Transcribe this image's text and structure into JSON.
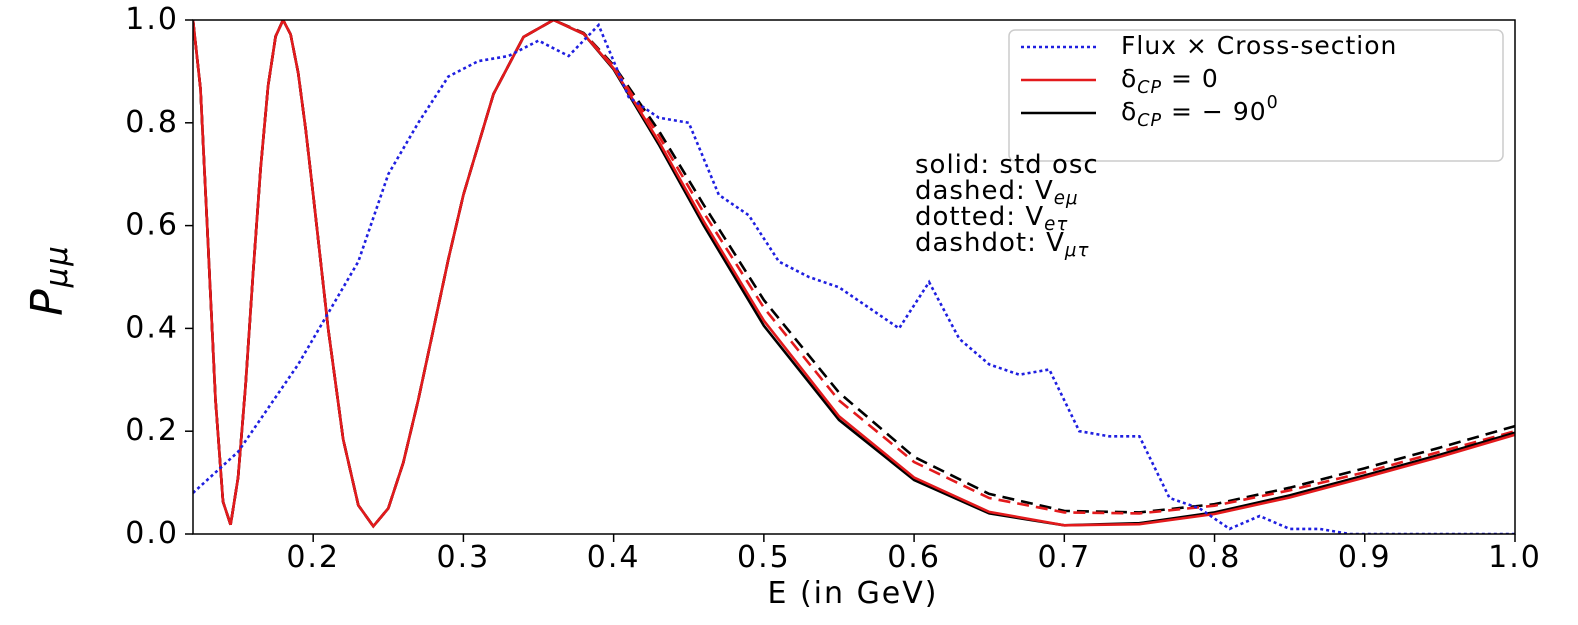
{
  "chart_data": {
    "type": "line",
    "xlabel": "E (in GeV)",
    "ylabel": "P_{μμ}",
    "x": [
      0.12,
      0.125,
      0.13,
      0.135,
      0.14,
      0.145,
      0.15,
      0.155,
      0.16,
      0.165,
      0.17,
      0.175,
      0.18,
      0.185,
      0.19,
      0.195,
      0.2,
      0.21,
      0.22,
      0.23,
      0.24,
      0.25,
      0.26,
      0.27,
      0.28,
      0.29,
      0.3,
      0.32,
      0.34,
      0.36,
      0.38,
      0.4,
      0.43,
      0.46,
      0.5,
      0.55,
      0.6,
      0.65,
      0.7,
      0.75,
      0.8,
      0.85,
      0.9,
      0.95,
      1.0
    ],
    "series": [
      {
        "color": "#000000",
        "dash": "12,7",
        "values": [
          1.0,
          0.866,
          0.567,
          0.261,
          0.063,
          0.018,
          0.11,
          0.29,
          0.508,
          0.711,
          0.872,
          0.968,
          1.0,
          0.972,
          0.897,
          0.787,
          0.66,
          0.399,
          0.184,
          0.056,
          0.015,
          0.05,
          0.139,
          0.261,
          0.398,
          0.535,
          0.66,
          0.856,
          0.967,
          1.0,
          0.975,
          0.912,
          0.785,
          0.64,
          0.455,
          0.275,
          0.15,
          0.078,
          0.045,
          0.042,
          0.058,
          0.09,
          0.128,
          0.168,
          0.21
        ]
      },
      {
        "color": "#e31a1c",
        "dash": "12,7",
        "values": [
          1.0,
          0.866,
          0.567,
          0.261,
          0.063,
          0.018,
          0.11,
          0.29,
          0.508,
          0.711,
          0.872,
          0.968,
          1.0,
          0.972,
          0.897,
          0.787,
          0.66,
          0.399,
          0.184,
          0.056,
          0.015,
          0.05,
          0.139,
          0.261,
          0.398,
          0.535,
          0.66,
          0.856,
          0.967,
          1.0,
          0.974,
          0.91,
          0.775,
          0.625,
          0.44,
          0.26,
          0.14,
          0.07,
          0.042,
          0.04,
          0.055,
          0.085,
          0.12,
          0.16,
          0.2
        ]
      },
      {
        "name": "δ_{CP} = − 90^{0}",
        "color": "#000000",
        "values": [
          1.0,
          0.866,
          0.567,
          0.261,
          0.063,
          0.018,
          0.11,
          0.29,
          0.508,
          0.711,
          0.872,
          0.968,
          1.0,
          0.972,
          0.897,
          0.787,
          0.66,
          0.399,
          0.184,
          0.056,
          0.015,
          0.05,
          0.139,
          0.261,
          0.398,
          0.535,
          0.66,
          0.856,
          0.967,
          1.0,
          0.973,
          0.904,
          0.758,
          0.6,
          0.405,
          0.222,
          0.105,
          0.04,
          0.017,
          0.021,
          0.042,
          0.075,
          0.114,
          0.154,
          0.197
        ]
      },
      {
        "name": "δ_{CP} = 0",
        "color": "#e31a1c",
        "values": [
          1.0,
          0.866,
          0.567,
          0.261,
          0.063,
          0.018,
          0.11,
          0.29,
          0.508,
          0.711,
          0.872,
          0.968,
          1.0,
          0.972,
          0.897,
          0.787,
          0.66,
          0.399,
          0.184,
          0.056,
          0.015,
          0.05,
          0.139,
          0.261,
          0.398,
          0.535,
          0.66,
          0.856,
          0.967,
          1.0,
          0.973,
          0.906,
          0.764,
          0.608,
          0.415,
          0.229,
          0.11,
          0.043,
          0.017,
          0.019,
          0.039,
          0.071,
          0.11,
          0.15,
          0.193
        ]
      },
      {
        "name": "Flux × Cross-section",
        "color": "#1f1fe0",
        "dash": "3,3",
        "x": [
          0.12,
          0.15,
          0.19,
          0.23,
          0.25,
          0.27,
          0.29,
          0.31,
          0.33,
          0.35,
          0.37,
          0.39,
          0.41,
          0.43,
          0.45,
          0.47,
          0.49,
          0.51,
          0.53,
          0.55,
          0.57,
          0.59,
          0.61,
          0.63,
          0.65,
          0.67,
          0.69,
          0.71,
          0.73,
          0.75,
          0.77,
          0.79,
          0.81,
          0.83,
          0.85,
          0.87,
          0.89,
          0.91,
          1.0
        ],
        "values": [
          0.08,
          0.16,
          0.33,
          0.53,
          0.7,
          0.8,
          0.89,
          0.92,
          0.93,
          0.96,
          0.93,
          0.99,
          0.85,
          0.81,
          0.8,
          0.66,
          0.62,
          0.53,
          0.5,
          0.48,
          0.44,
          0.4,
          0.49,
          0.38,
          0.33,
          0.31,
          0.32,
          0.2,
          0.19,
          0.19,
          0.07,
          0.05,
          0.01,
          0.035,
          0.01,
          0.01,
          0.0,
          0.0,
          0.0
        ]
      }
    ],
    "annotations": [
      "solid: std osc",
      "dashed: V_{eμ}",
      "dotted: V_{eτ}",
      "dashdot: V_{μτ}"
    ],
    "xlim": [
      0.12,
      1.0
    ],
    "xticks": [
      0.2,
      0.3,
      0.4,
      0.5,
      0.6,
      0.7,
      0.8,
      0.9,
      {
        "value": 1.0,
        "label": "1.0"
      }
    ],
    "ylim": [
      0,
      1.0
    ],
    "yticks": [
      {
        "value": 0,
        "label": "0.0"
      },
      0.2,
      0.4,
      0.6,
      0.8,
      {
        "value": 1.0,
        "label": "1.0"
      }
    ],
    "grid": false,
    "legend": "upper right"
  }
}
